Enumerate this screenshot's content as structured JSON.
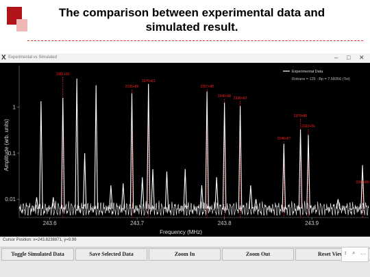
{
  "slide": {
    "title_line1": "The comparison between experimental data and",
    "title_line2": "simulated result.",
    "accent_color": "#b0141a"
  },
  "window": {
    "app_icon": "X",
    "title": "Experimental vs Simulated",
    "minimize": "–",
    "maximize": "□",
    "close": "✕"
  },
  "legend": {
    "label": "Experimental Data",
    "params": "Rotrans = 125 : Bp = 7.58356 (Tot)"
  },
  "status": {
    "cursor_position": "Cursor Position: x=243.8238871, y=9.99"
  },
  "buttons": {
    "toggle_simulated": "Toggle Simulated Data",
    "save_selected": "Save Selected Data",
    "zoom_in": "Zoom In",
    "zoom_out": "Zoom Out",
    "reset_view": "Reset View"
  },
  "toolbar": {
    "icons": [
      "cursor-icon",
      "magnify-icon",
      "more-icon"
    ],
    "glyphs": [
      "↕",
      "⌕",
      "…"
    ]
  },
  "chart_data": {
    "type": "line",
    "title": "",
    "xlabel": "Frequency (MHz)",
    "ylabel": "Amplitude (arb. units)",
    "y_scale": "log",
    "xlim": [
      243.565,
      243.965
    ],
    "ylim": [
      0.004,
      8
    ],
    "x_ticks": [
      "243.6",
      "243.7",
      "243.8",
      "243.9"
    ],
    "y_ticks": [
      "1",
      "0.1",
      "0.01"
    ],
    "series": [
      {
        "name": "Experimental Data",
        "color": "#ffffff",
        "peaks": [
          {
            "x": 243.585,
            "y": 0.011
          },
          {
            "x": 243.59,
            "y": 1.35
          },
          {
            "x": 243.604,
            "y": 0.011
          },
          {
            "x": 243.615,
            "y": 1.6
          },
          {
            "x": 243.631,
            "y": 4.2
          },
          {
            "x": 243.64,
            "y": 0.1
          },
          {
            "x": 243.653,
            "y": 3.0
          },
          {
            "x": 243.67,
            "y": 0.02
          },
          {
            "x": 243.684,
            "y": 0.022
          },
          {
            "x": 243.694,
            "y": 2.0
          },
          {
            "x": 243.706,
            "y": 0.03
          },
          {
            "x": 243.713,
            "y": 3.2
          },
          {
            "x": 243.718,
            "y": 0.045
          },
          {
            "x": 243.734,
            "y": 0.04
          },
          {
            "x": 243.755,
            "y": 0.045
          },
          {
            "x": 243.774,
            "y": 0.02
          },
          {
            "x": 243.78,
            "y": 2.2
          },
          {
            "x": 243.791,
            "y": 0.03
          },
          {
            "x": 243.8,
            "y": 1.25
          },
          {
            "x": 243.818,
            "y": 1.05
          },
          {
            "x": 243.83,
            "y": 0.02
          },
          {
            "x": 243.836,
            "y": 0.01
          },
          {
            "x": 243.868,
            "y": 0.16
          },
          {
            "x": 243.887,
            "y": 0.33
          },
          {
            "x": 243.896,
            "y": 0.25
          },
          {
            "x": 243.93,
            "y": 0.01
          },
          {
            "x": 243.945,
            "y": 0.006
          },
          {
            "x": 243.958,
            "y": 0.055
          }
        ]
      },
      {
        "name": "Simulated",
        "color": "#ff2020",
        "lines": [
          {
            "x": 243.615,
            "y": 4.5,
            "label": "2351+82"
          },
          {
            "x": 243.694,
            "y": 2.4,
            "label": "2235+89"
          },
          {
            "x": 243.713,
            "y": 3.2,
            "label": "2370+81"
          },
          {
            "x": 243.78,
            "y": 2.4,
            "label": "2357+88"
          },
          {
            "x": 243.8,
            "y": 1.5,
            "label": "2340+80"
          },
          {
            "x": 243.818,
            "y": 1.35,
            "label": "2330+82"
          },
          {
            "x": 243.868,
            "y": 0.18,
            "label": "2248+87"
          },
          {
            "x": 243.887,
            "y": 0.55,
            "label": "2378+85"
          },
          {
            "x": 243.896,
            "y": 0.33,
            "label": "2322+81"
          },
          {
            "x": 243.958,
            "y": 0.02,
            "label": "2392+80"
          }
        ]
      }
    ],
    "legend_position": "top-right",
    "grid": false
  }
}
